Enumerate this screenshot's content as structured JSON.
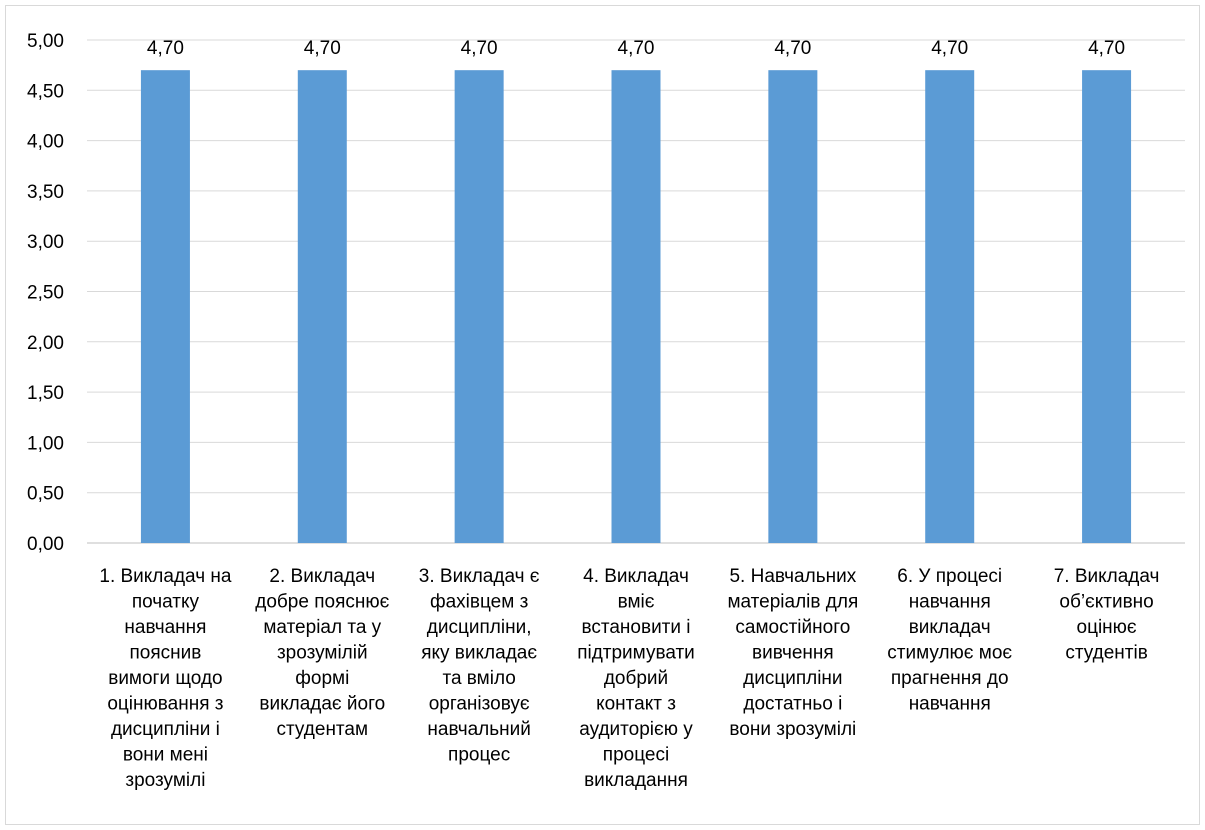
{
  "chart_data": {
    "type": "bar",
    "categories": [
      [
        "1. Викладач на",
        "початку",
        "навчання",
        "пояснив",
        "вимоги щодо",
        "оцінювання з",
        "дисципліни і",
        "вони мені",
        "зрозумілі"
      ],
      [
        "2. Викладач",
        "добре пояснює",
        "матеріал та у",
        "зрозумілій",
        "формі",
        "викладає його",
        "студентам"
      ],
      [
        "3. Викладач є",
        "фахівцем з",
        "дисципліни,",
        "яку викладає",
        "та вміло",
        "організовує",
        "навчальний",
        "процес"
      ],
      [
        "4. Викладач",
        "вміє",
        "встановити і",
        "підтримувати",
        "добрий",
        "контакт з",
        "аудиторією у",
        "процесі",
        "викладання"
      ],
      [
        "5. Навчальних",
        "матеріалів для",
        "самостійного",
        "вивчення",
        "дисципліни",
        "достатньо і",
        "вони зрозумілі"
      ],
      [
        "6.  У процесі",
        "навчання",
        "викладач",
        "стимулює моє",
        "прагнення до",
        "навчання"
      ],
      [
        "7. Викладач",
        "об’єктивно",
        "оцінює",
        "студентів"
      ]
    ],
    "values": [
      4.7,
      4.7,
      4.7,
      4.7,
      4.7,
      4.7,
      4.7
    ],
    "data_labels": [
      "4,70",
      "4,70",
      "4,70",
      "4,70",
      "4,70",
      "4,70",
      "4,70"
    ],
    "y_ticks": [
      "0,00",
      "0,50",
      "1,00",
      "1,50",
      "2,00",
      "2,50",
      "3,00",
      "3,50",
      "4,00",
      "4,50",
      "5,00"
    ],
    "ylim": [
      0,
      5
    ],
    "grid": true,
    "legend": "none",
    "colors": {
      "bar": "#5b9bd5",
      "grid": "#d9d9d9",
      "axis": "#bfbfbf"
    }
  }
}
